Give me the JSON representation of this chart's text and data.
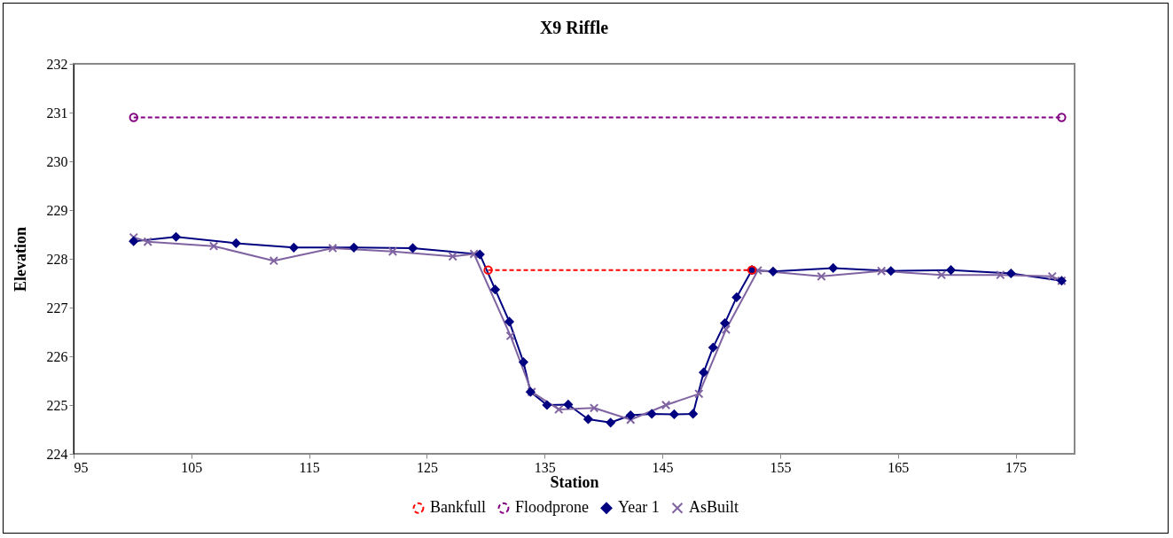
{
  "chart_data": {
    "type": "line",
    "title": "X9 Riffle",
    "xlabel": "Station",
    "ylabel": "Elevation",
    "xlim": [
      95,
      180
    ],
    "xticks": [
      95,
      105,
      115,
      125,
      135,
      145,
      155,
      165,
      175
    ],
    "ylim": [
      224,
      232
    ],
    "yticks": [
      224,
      225,
      226,
      227,
      228,
      229,
      230,
      231,
      232
    ],
    "grid": false,
    "legend": "bottom",
    "series": [
      {
        "name": "Bankfull",
        "color": "#ff0000",
        "marker": "circle",
        "line_style": "dashed",
        "x": [
          130.2,
          152.6
        ],
        "values": [
          227.77,
          227.77
        ]
      },
      {
        "name": "Floodprone",
        "color": "#800080",
        "marker": "circle",
        "line_style": "dashed",
        "x": [
          100.1,
          178.9
        ],
        "values": [
          230.9,
          230.9
        ]
      },
      {
        "name": "Year 1",
        "color": "#000080",
        "marker": "diamond",
        "line_style": "solid",
        "x": [
          100.1,
          103.7,
          108.8,
          113.7,
          118.8,
          123.8,
          129.5,
          130.8,
          132.0,
          133.2,
          133.8,
          135.2,
          137.0,
          138.7,
          140.6,
          142.3,
          144.1,
          146.0,
          147.6,
          148.5,
          149.3,
          150.3,
          151.3,
          152.6,
          154.4,
          159.5,
          164.4,
          169.5,
          174.6,
          178.9
        ],
        "values": [
          228.36,
          228.45,
          228.32,
          228.23,
          228.23,
          228.22,
          228.09,
          227.37,
          226.71,
          225.88,
          225.27,
          225.0,
          225.01,
          224.71,
          224.64,
          224.79,
          224.82,
          224.81,
          224.82,
          225.67,
          226.18,
          226.68,
          227.21,
          227.77,
          227.74,
          227.81,
          227.75,
          227.77,
          227.7,
          227.55
        ]
      },
      {
        "name": "AsBuilt",
        "color": "#8064a2",
        "marker": "cross",
        "line_style": "solid",
        "x": [
          100.1,
          101.3,
          106.9,
          112.0,
          117.0,
          122.1,
          127.2,
          129.0,
          132.1,
          133.9,
          136.2,
          139.2,
          142.3,
          145.3,
          148.1,
          150.4,
          153.1,
          158.5,
          163.6,
          168.7,
          173.7,
          178.1,
          178.9
        ],
        "values": [
          228.44,
          228.35,
          228.26,
          227.96,
          228.22,
          228.15,
          228.05,
          228.1,
          226.42,
          225.27,
          224.91,
          224.94,
          224.7,
          225.0,
          225.23,
          226.55,
          227.76,
          227.64,
          227.75,
          227.67,
          227.67,
          227.64,
          227.55
        ]
      }
    ]
  }
}
